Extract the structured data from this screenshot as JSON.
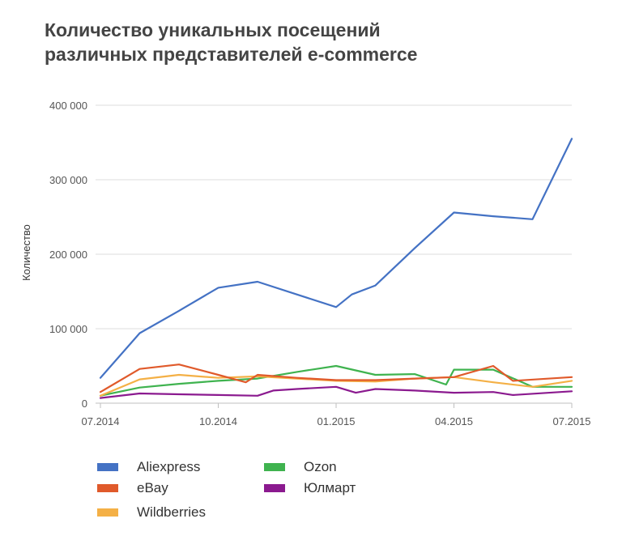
{
  "chart_data": {
    "type": "line",
    "title_lines": [
      "Количество уникальных посещений",
      "различных представителей e-commerce"
    ],
    "ylabel": "Количество",
    "xlabel": "",
    "ylim": [
      0,
      400000
    ],
    "yticks": [
      0,
      100000,
      200000,
      300000,
      400000
    ],
    "ytick_labels": [
      "0",
      "100 000",
      "200 000",
      "300 000",
      "400 000"
    ],
    "x_points": 13,
    "xtick_positions": [
      0,
      3,
      6,
      9,
      12
    ],
    "xtick_labels": [
      "07.2014",
      "10.2014",
      "01.2015",
      "04.2015",
      "07.2015"
    ],
    "grid": true,
    "legend_position": "bottom",
    "series": [
      {
        "name": "Aliexpress",
        "color": "#4472c4",
        "points": [
          [
            0,
            34000
          ],
          [
            1,
            94000
          ],
          [
            2,
            124000
          ],
          [
            3,
            155000
          ],
          [
            4,
            163000
          ],
          [
            5,
            146000
          ],
          [
            6,
            129000
          ],
          [
            6.4,
            146000
          ],
          [
            7,
            158000
          ],
          [
            8,
            208000
          ],
          [
            9,
            256000
          ],
          [
            10,
            251000
          ],
          [
            11,
            247000
          ],
          [
            12,
            355000
          ]
        ]
      },
      {
        "name": "eBay",
        "color": "#e05a2b",
        "points": [
          [
            0,
            15000
          ],
          [
            1,
            46000
          ],
          [
            2,
            52000
          ],
          [
            3,
            38000
          ],
          [
            3.7,
            28000
          ],
          [
            4,
            38000
          ],
          [
            5,
            34000
          ],
          [
            6,
            31000
          ],
          [
            7,
            31000
          ],
          [
            8,
            33000
          ],
          [
            9,
            35000
          ],
          [
            10,
            50000
          ],
          [
            10.5,
            30000
          ],
          [
            12,
            35000
          ]
        ]
      },
      {
        "name": "Wildberries",
        "color": "#f4b046",
        "points": [
          [
            0,
            10000
          ],
          [
            1,
            32000
          ],
          [
            2,
            38000
          ],
          [
            3,
            34000
          ],
          [
            4,
            36000
          ],
          [
            5,
            33000
          ],
          [
            6,
            30000
          ],
          [
            7,
            29000
          ],
          [
            8,
            33000
          ],
          [
            9,
            35000
          ],
          [
            10,
            28000
          ],
          [
            11,
            22000
          ],
          [
            12,
            30000
          ]
        ]
      },
      {
        "name": "Ozon",
        "color": "#3fb34f",
        "points": [
          [
            0,
            10000
          ],
          [
            1,
            21000
          ],
          [
            2,
            26000
          ],
          [
            3,
            30000
          ],
          [
            4,
            33000
          ],
          [
            5,
            42000
          ],
          [
            6,
            50000
          ],
          [
            7,
            38000
          ],
          [
            8,
            39000
          ],
          [
            8.8,
            25000
          ],
          [
            9,
            45000
          ],
          [
            10,
            45000
          ],
          [
            11,
            22000
          ],
          [
            12,
            22000
          ]
        ]
      },
      {
        "name": "Юлмарт",
        "color": "#8b1a8f",
        "points": [
          [
            0,
            7000
          ],
          [
            1,
            13000
          ],
          [
            2,
            12000
          ],
          [
            3,
            11000
          ],
          [
            4,
            10000
          ],
          [
            4.4,
            17000
          ],
          [
            5,
            19000
          ],
          [
            6,
            22000
          ],
          [
            6.5,
            14000
          ],
          [
            7,
            19000
          ],
          [
            8,
            17000
          ],
          [
            9,
            14000
          ],
          [
            10,
            15000
          ],
          [
            10.5,
            11000
          ],
          [
            12,
            16000
          ]
        ]
      }
    ]
  }
}
